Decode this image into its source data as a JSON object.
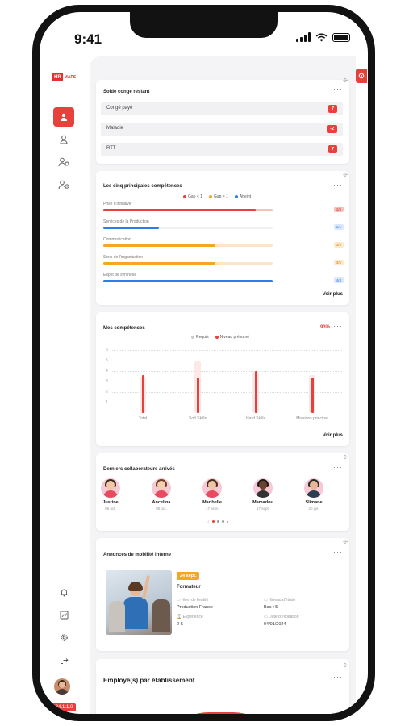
{
  "status_bar": {
    "time": "9:41"
  },
  "sidebar": {
    "logo_box": "HR",
    "logo_text": "MAPS",
    "version": "2024.1.1.0"
  },
  "solde": {
    "title": "Solde congé restant",
    "rows": [
      {
        "label": "Congé payé",
        "value": "7"
      },
      {
        "label": "Maladie",
        "value": "-2"
      },
      {
        "label": "RTT",
        "value": "7"
      }
    ]
  },
  "competences_top": {
    "title": "Les cinq principales compétences",
    "legend": [
      {
        "label": "Gap < 1",
        "color": "#e8403a"
      },
      {
        "label": "Gap > 1",
        "color": "#f5a623"
      },
      {
        "label": "Atteint",
        "color": "#2b7de9"
      }
    ],
    "skills": [
      {
        "name": "Prise d'initiative",
        "tag": "1/5",
        "level": 0.9,
        "color": "#e8403a",
        "track": "#f6c0bd",
        "tag_bg": "#f6c0bd",
        "tag_color": "#c62828"
      },
      {
        "name": "Services de la Production",
        "tag": "1/1",
        "level": 0.33,
        "color": "#2b7de9",
        "track": "#f1f1f3",
        "tag_bg": "#dbe8fb",
        "tag_color": "#2b7de9"
      },
      {
        "name": "Communication",
        "tag": "3/5",
        "level": 0.66,
        "color": "#f5a623",
        "track": "#fce6c7",
        "tag_bg": "#fde9cc",
        "tag_color": "#d48806"
      },
      {
        "name": "Sens de l'organisation",
        "tag": "3/5",
        "level": 0.66,
        "color": "#f5a623",
        "track": "#fce6c7",
        "tag_bg": "#fde9cc",
        "tag_color": "#d48806"
      },
      {
        "name": "Esprit de synthèse",
        "tag": "4/4",
        "level": 1.0,
        "color": "#2b7de9",
        "track": "#f1f1f3",
        "tag_bg": "#dbe8fb",
        "tag_color": "#2b7de9"
      }
    ],
    "voir_plus": "Voir plus"
  },
  "mes_competences": {
    "title": "Mes compétences",
    "percent": "93%",
    "voir_plus": "Voir plus"
  },
  "chart_data": {
    "type": "bar",
    "categories": [
      "Total",
      "Soft Skills",
      "Hard Skills",
      "Missions principal"
    ],
    "series": [
      {
        "name": "Requis",
        "values": [
          3.5,
          4.9,
          3.9,
          3.6
        ],
        "color": "#fde8e8"
      },
      {
        "name": "Niveau présumé",
        "values": [
          3.6,
          3.4,
          4.0,
          3.4
        ],
        "color": "#e8403a"
      }
    ],
    "yticks": [
      "1",
      "2",
      "3",
      "4",
      "5",
      "6"
    ],
    "ylim": [
      0,
      6
    ],
    "legend_position": "top-center",
    "grid": true
  },
  "collaborateurs": {
    "title": "Derniers collaborateurs arrivés",
    "items": [
      {
        "name": "Justine",
        "date": "05 oct.",
        "skin": "#f2c7a8",
        "hair": "#3b2a20",
        "body": "#e84a5f"
      },
      {
        "name": "Ancelina",
        "date": "05 oct.",
        "skin": "#f5cdb0",
        "hair": "#6b3e26",
        "body": "#e84a5f"
      },
      {
        "name": "Maribelle",
        "date": "17 sept.",
        "skin": "#f0c4a4",
        "hair": "#4a2c1c",
        "body": "#e84a5f"
      },
      {
        "name": "Mamadou",
        "date": "17 sept.",
        "skin": "#6b4430",
        "hair": "#1b1b1b",
        "body": "#333333"
      },
      {
        "name": "Slimane",
        "date": "20 juil.",
        "skin": "#e6b796",
        "hair": "#2b2b2b",
        "body": "#2c3e50"
      }
    ]
  },
  "annonces": {
    "title": "Annonces de mobilité interne",
    "date": "24 sept.",
    "role": "Formateur",
    "fields": [
      {
        "label": "Nom de l'entité",
        "value": "Production France"
      },
      {
        "label": "Niveau d'étude",
        "value": "Bac +5"
      },
      {
        "label": "Expérience",
        "value": "2-5"
      },
      {
        "label": "Date d'expiration",
        "value": "04/01/2024"
      }
    ]
  },
  "employes": {
    "title": "Employé(s) par établissement"
  }
}
